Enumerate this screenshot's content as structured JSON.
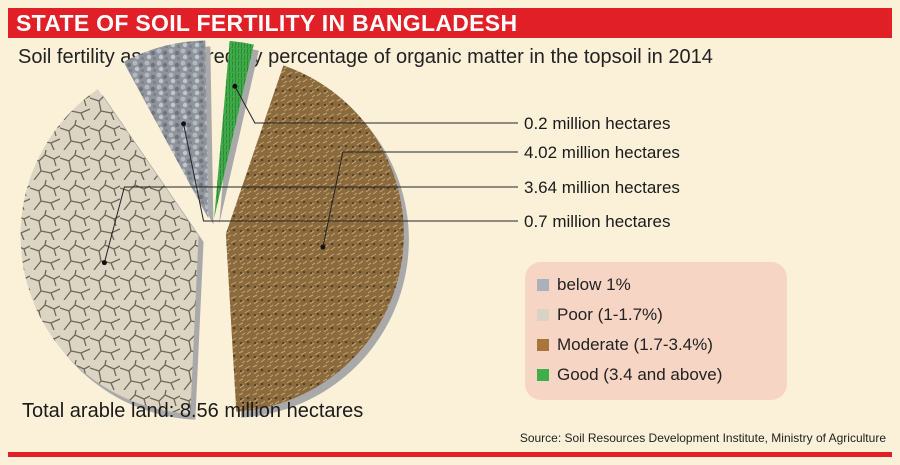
{
  "header": {
    "title": "STATE OF SOIL FERTILITY IN BANGLADESH",
    "subtitle": "Soil fertility as measured by percentage of organic matter in the topsoil in 2014"
  },
  "colors": {
    "accent": "#e01f26",
    "background": "#fbf1d8",
    "legend_background": "#f6d5c4"
  },
  "chart_data": {
    "type": "pie",
    "title": "STATE OF SOIL FERTILITY IN BANGLADESH",
    "subtitle": "Soil fertility as measured by percentage of organic matter in the topsoil in 2014",
    "unit": "million hectares",
    "slices": [
      {
        "category": "Good (3.4 and above)",
        "value": 0.2,
        "label": "0.2 million hectares",
        "color": "#3fae49"
      },
      {
        "category": "Moderate (1.7-3.4%)",
        "value": 4.02,
        "label": "4.02 million hectares",
        "color": "#8b6a3e"
      },
      {
        "category": "Poor (1-1.7%)",
        "value": 3.64,
        "label": "3.64 million hectares",
        "color": "#d6cdbb"
      },
      {
        "category": "below 1%",
        "value": 0.7,
        "label": "0.7 million hectares",
        "color": "#9ea3ab"
      }
    ],
    "total": 8.56,
    "legend_placement": "bottom-right",
    "source": "Source: Soil Resources Development Institute, Ministry of Agriculture"
  },
  "legend": {
    "items": [
      {
        "label": "below 1%",
        "color": "#aab1ba"
      },
      {
        "label": "Poor (1-1.7%)",
        "color": "#d8d3c4"
      },
      {
        "label": "Moderate (1.7-3.4%)",
        "color": "#a8753a"
      },
      {
        "label": "Good (3.4 and above)",
        "color": "#3fae49"
      }
    ]
  },
  "footer": {
    "total_text": "Total arable land: 8.56 million hectares",
    "source": "Source: Soil Resources Development Institute, Ministry of Agriculture"
  }
}
